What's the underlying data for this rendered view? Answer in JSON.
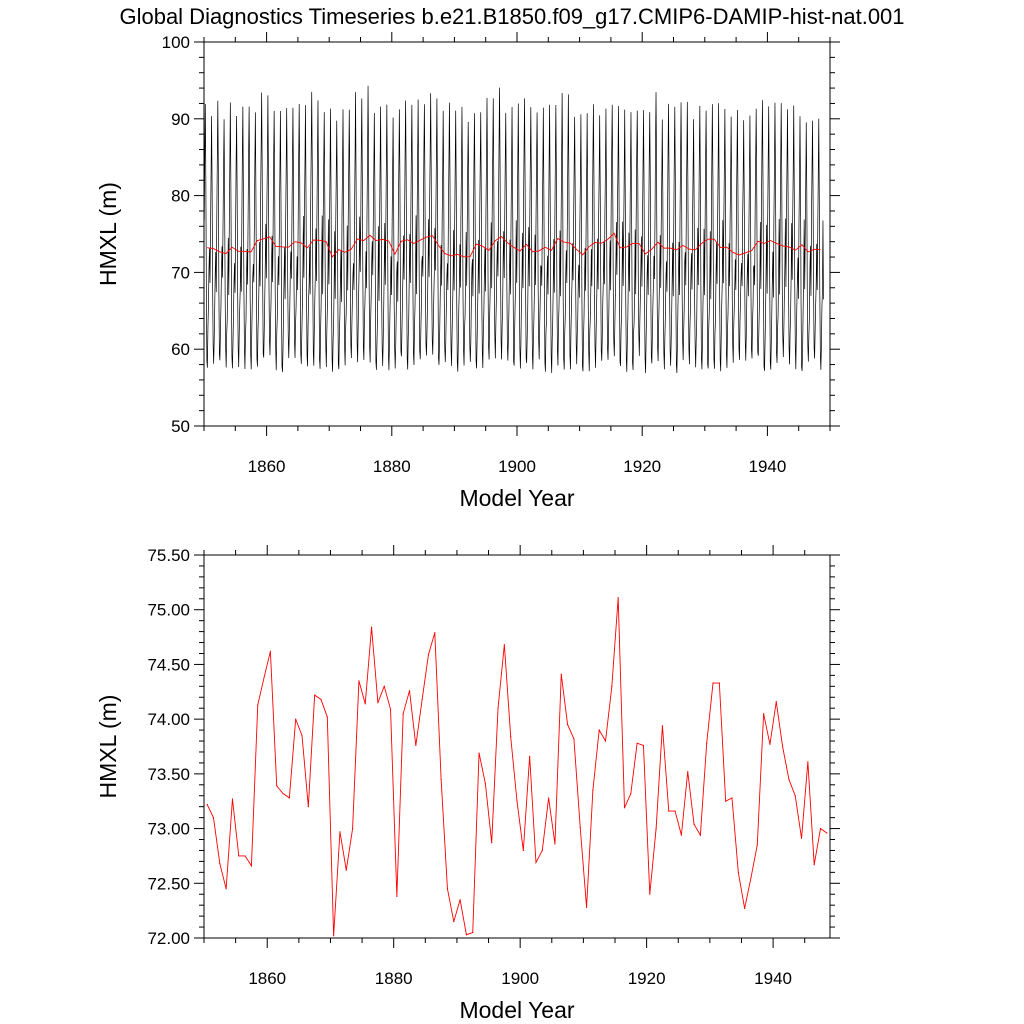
{
  "title": "Global Diagnostics Timeseries b.e21.B1850.f09_g17.CMIP6-DAMIP-hist-nat.001",
  "chart_data": [
    {
      "type": "line",
      "xlabel": "Model Year",
      "ylabel": "HMXL (m)",
      "xlim": [
        1850,
        1950
      ],
      "ylim": [
        50,
        100
      ],
      "xticks": [
        "1860",
        "1880",
        "1900",
        "1920",
        "1940"
      ],
      "yticks": [
        "50",
        "60",
        "70",
        "80",
        "90",
        "100"
      ],
      "series": [
        {
          "color": "#000000",
          "kind": "monthly",
          "seasonal_max_approx": 91.5,
          "seasonal_min_approx": 58.0,
          "x_start": 1850.04,
          "x_end": 1949.96
        },
        {
          "color": "#ff0000",
          "kind": "annual_mean",
          "source": "annual_means"
        }
      ]
    },
    {
      "type": "line",
      "xlabel": "Model Year",
      "ylabel": "HMXL (m)",
      "xlim": [
        1850,
        1949
      ],
      "ylim": [
        72,
        75.5
      ],
      "xticks": [
        "1860",
        "1880",
        "1900",
        "1920",
        "1940"
      ],
      "yticks": [
        "72.00",
        "72.50",
        "73.00",
        "73.50",
        "74.00",
        "74.50",
        "75.00",
        "75.50"
      ],
      "series": [
        {
          "color": "#ff0000",
          "source": "annual_means"
        }
      ]
    }
  ],
  "annual_means": {
    "x_start": 1850.5,
    "x_step": 1,
    "values": [
      73.22,
      73.1,
      72.68,
      72.45,
      73.27,
      72.75,
      72.75,
      72.66,
      74.13,
      74.38,
      74.62,
      73.39,
      73.32,
      73.28,
      74.0,
      73.85,
      73.2,
      74.22,
      74.18,
      74.02,
      72.02,
      72.97,
      72.62,
      73.0,
      74.35,
      74.14,
      74.84,
      74.15,
      74.3,
      74.09,
      72.38,
      74.05,
      74.26,
      73.76,
      74.18,
      74.59,
      74.79,
      73.45,
      72.45,
      72.15,
      72.35,
      72.03,
      72.05,
      73.69,
      73.41,
      72.87,
      74.1,
      74.68,
      73.84,
      73.25,
      72.8,
      73.66,
      72.69,
      72.8,
      73.28,
      72.86,
      74.41,
      73.95,
      73.82,
      73.01,
      72.28,
      73.35,
      73.9,
      73.8,
      74.3,
      75.11,
      73.19,
      73.32,
      73.78,
      73.76,
      72.4,
      73.0,
      73.94,
      73.16,
      73.16,
      72.94,
      73.52,
      73.04,
      72.94,
      73.78,
      74.33,
      74.33,
      73.25,
      73.28,
      72.6,
      72.27,
      72.55,
      72.85,
      74.05,
      73.77,
      74.16,
      73.75,
      73.45,
      73.3,
      72.91,
      73.61,
      72.67,
      73.0,
      72.96
    ]
  }
}
